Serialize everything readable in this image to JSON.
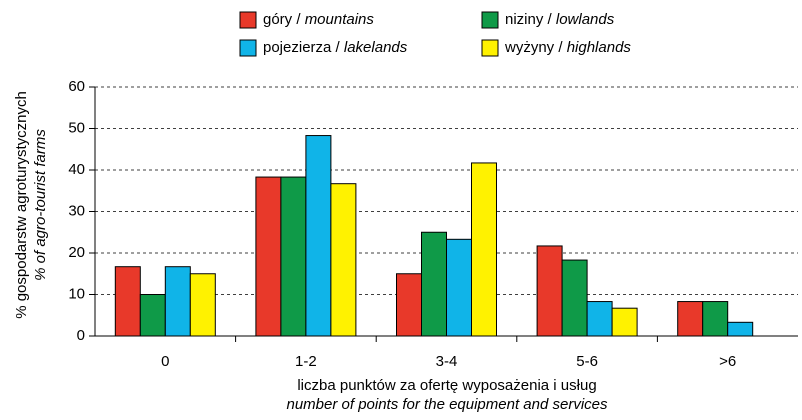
{
  "chart_data": {
    "type": "bar",
    "y_label": "% gospodarstw agroturystycznych",
    "y_label_en": "% of agro-tourist farms",
    "x_label": "liczba punktów za ofertę wyposażenia i usług",
    "x_label_en": "number of points for the equipment and services",
    "categories": [
      "0",
      "1-2",
      "3-4",
      "5-6",
      ">6"
    ],
    "series": [
      {
        "name": "góry / mountains",
        "color": "#e8392a",
        "values": [
          16.7,
          38.3,
          15,
          21.7,
          8.3
        ]
      },
      {
        "name": "niziny / lowlands",
        "color": "#0f9a48",
        "values": [
          10,
          38.3,
          25,
          18.3,
          8.3
        ]
      },
      {
        "name": "pojezierza / lakelands",
        "color": "#10b4e8",
        "values": [
          16.7,
          48.3,
          23.3,
          8.3,
          3.3
        ]
      },
      {
        "name": "wyżyny / highlands",
        "color": "#fff200",
        "values": [
          15,
          36.7,
          41.7,
          6.7,
          0
        ]
      }
    ],
    "ylim": [
      0,
      60
    ],
    "yticks": [
      0,
      10,
      20,
      30,
      40,
      50,
      60
    ],
    "grid": true
  }
}
